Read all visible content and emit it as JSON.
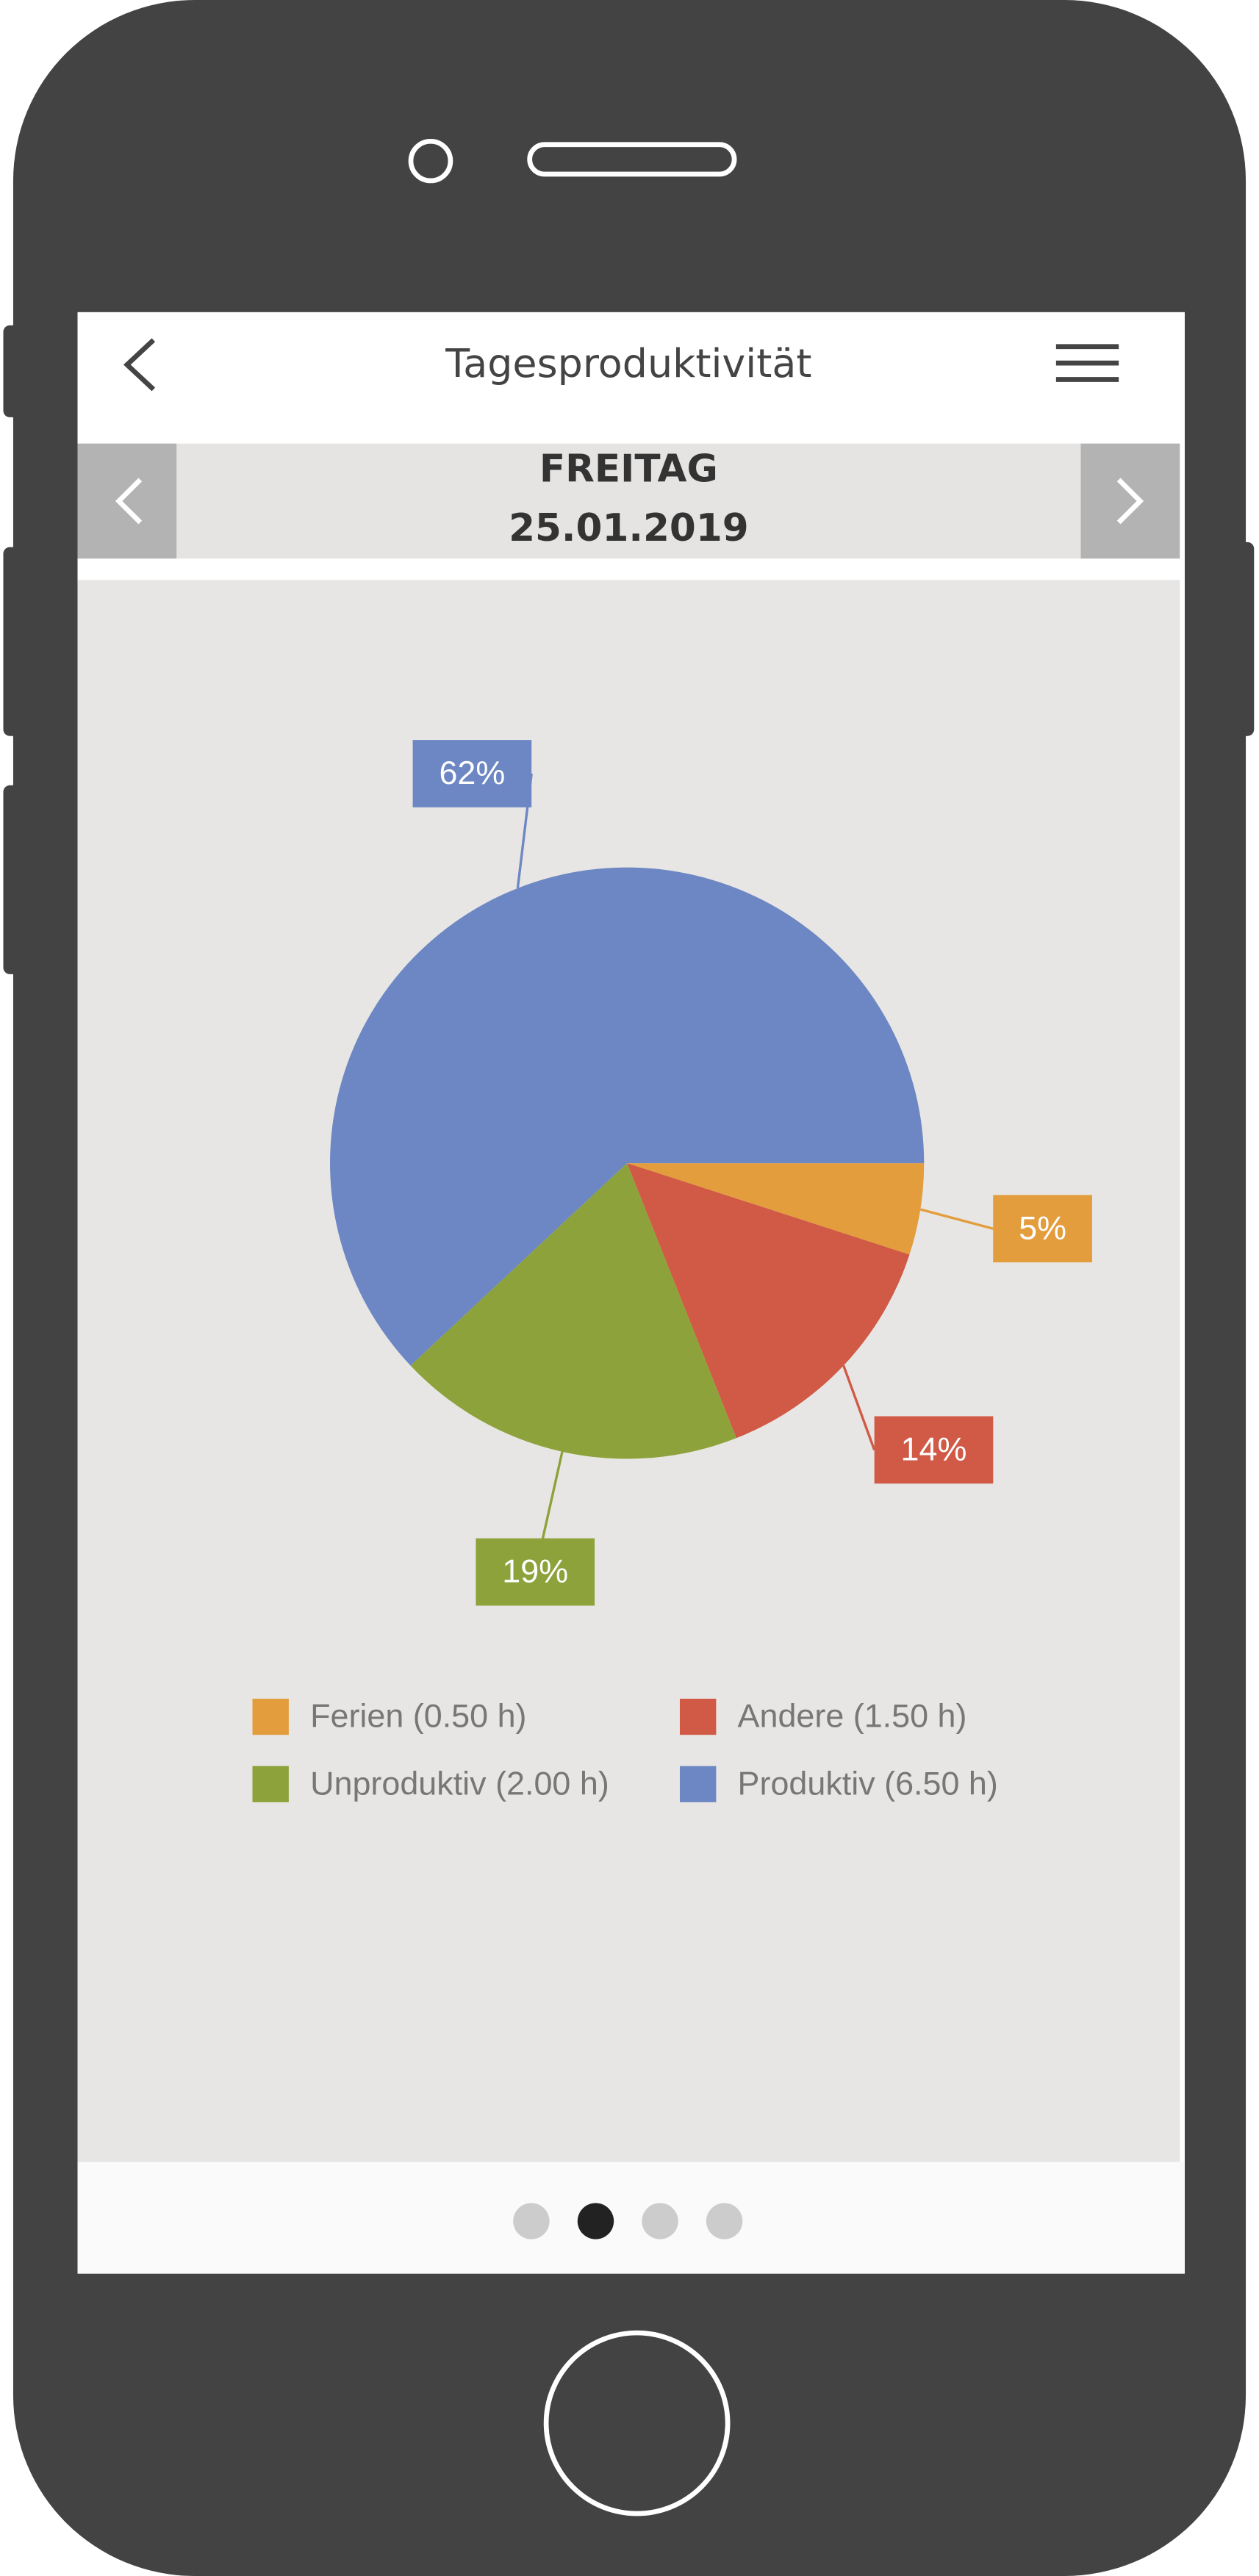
{
  "header": {
    "title": "Tagesproduktivität"
  },
  "date": {
    "day": "FREITAG",
    "date": "25.01.2019"
  },
  "chart_data": {
    "type": "pie",
    "categories": [
      "Ferien (0.50 h)",
      "Andere (1.50 h)",
      "Unproduktiv (2.00 h)",
      "Produktiv (6.50 h)"
    ],
    "values": [
      5,
      14,
      19,
      62
    ],
    "value_labels": [
      "5%",
      "14%",
      "19%",
      "62%"
    ],
    "colors": [
      "#e39d3d",
      "#d05a46",
      "#8da23a",
      "#6c87c3"
    ]
  }
}
